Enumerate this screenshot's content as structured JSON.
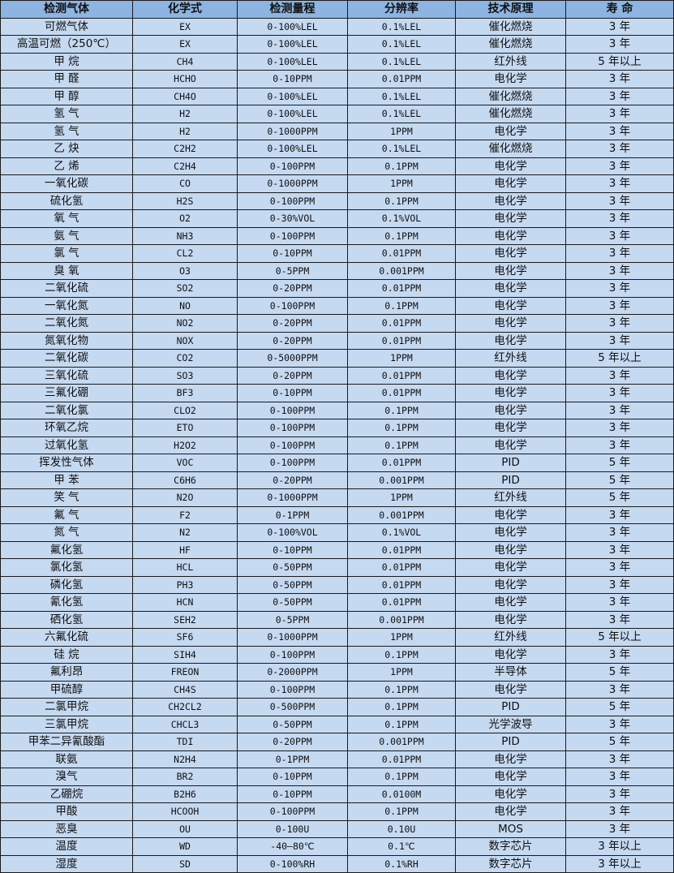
{
  "colors": {
    "header_bg": "#8db4e2",
    "row_bg": "#c5d9f1",
    "border": "#1a1a1a"
  },
  "table": {
    "headers": [
      "检测气体",
      "化学式",
      "检测量程",
      "分辨率",
      "技术原理",
      "寿 命"
    ],
    "rows": [
      [
        "可燃气体",
        "EX",
        "0-100%LEL",
        "0.1%LEL",
        "催化燃烧",
        "3 年"
      ],
      [
        "高温可燃（250℃）",
        "EX",
        "0-100%LEL",
        "0.1%LEL",
        "催化燃烧",
        "3 年"
      ],
      [
        "甲 烷",
        "CH4",
        "0-100%LEL",
        "0.1%LEL",
        "红外线",
        "5 年以上"
      ],
      [
        "甲 醛",
        "HCHO",
        "0-10PPM",
        "0.01PPM",
        "电化学",
        "3 年"
      ],
      [
        "甲 醇",
        "CH4O",
        "0-100%LEL",
        "0.1%LEL",
        "催化燃烧",
        "3 年"
      ],
      [
        "氢 气",
        "H2",
        "0-100%LEL",
        "0.1%LEL",
        "催化燃烧",
        "3 年"
      ],
      [
        "氢 气",
        "H2",
        "0-1000PPM",
        "1PPM",
        "电化学",
        "3 年"
      ],
      [
        "乙 炔",
        "C2H2",
        "0-100%LEL",
        "0.1%LEL",
        "催化燃烧",
        "3 年"
      ],
      [
        "乙 烯",
        "C2H4",
        "0-100PPM",
        "0.1PPM",
        "电化学",
        "3 年"
      ],
      [
        "一氧化碳",
        "CO",
        "0-1000PPM",
        "1PPM",
        "电化学",
        "3 年"
      ],
      [
        "硫化氢",
        "H2S",
        "0-100PPM",
        "0.1PPM",
        "电化学",
        "3 年"
      ],
      [
        "氧 气",
        "O2",
        "0-30%VOL",
        "0.1%VOL",
        "电化学",
        "3 年"
      ],
      [
        "氨 气",
        "NH3",
        "0-100PPM",
        "0.1PPM",
        "电化学",
        "3 年"
      ],
      [
        "氯 气",
        "CL2",
        "0-10PPM",
        "0.01PPM",
        "电化学",
        "3 年"
      ],
      [
        "臭 氧",
        "O3",
        "0-5PPM",
        "0.001PPM",
        "电化学",
        "3 年"
      ],
      [
        "二氧化硫",
        "SO2",
        "0-20PPM",
        "0.01PPM",
        "电化学",
        "3 年"
      ],
      [
        "一氧化氮",
        "NO",
        "0-100PPM",
        "0.1PPM",
        "电化学",
        "3 年"
      ],
      [
        "二氧化氮",
        "NO2",
        "0-20PPM",
        "0.01PPM",
        "电化学",
        "3 年"
      ],
      [
        "氮氧化物",
        "NOX",
        "0-20PPM",
        "0.01PPM",
        "电化学",
        "3 年"
      ],
      [
        "二氧化碳",
        "CO2",
        "0-5000PPM",
        "1PPM",
        "红外线",
        "5 年以上"
      ],
      [
        "三氧化硫",
        "SO3",
        "0-20PPM",
        "0.01PPM",
        "电化学",
        "3 年"
      ],
      [
        "三氟化硼",
        "BF3",
        "0-10PPM",
        "0.01PPM",
        "电化学",
        "3 年"
      ],
      [
        "二氧化氯",
        "CLO2",
        "0-100PPM",
        "0.1PPM",
        "电化学",
        "3 年"
      ],
      [
        "环氧乙烷",
        "ETO",
        "0-100PPM",
        "0.1PPM",
        "电化学",
        "3 年"
      ],
      [
        "过氧化氢",
        "H2O2",
        "0-100PPM",
        "0.1PPM",
        "电化学",
        "3 年"
      ],
      [
        "挥发性气体",
        "VOC",
        "0-100PPM",
        "0.01PPM",
        "PID",
        "5 年"
      ],
      [
        "甲 苯",
        "C6H6",
        "0-20PPM",
        "0.001PPM",
        "PID",
        "5 年"
      ],
      [
        "笑 气",
        "N2O",
        "0-1000PPM",
        "1PPM",
        "红外线",
        "5 年"
      ],
      [
        "氟 气",
        "F2",
        "0-1PPM",
        "0.001PPM",
        "电化学",
        "3 年"
      ],
      [
        "氮 气",
        "N2",
        "0-100%VOL",
        "0.1%VOL",
        "电化学",
        "3 年"
      ],
      [
        "氟化氢",
        "HF",
        "0-10PPM",
        "0.01PPM",
        "电化学",
        "3 年"
      ],
      [
        "氯化氢",
        "HCL",
        "0-50PPM",
        "0.01PPM",
        "电化学",
        "3 年"
      ],
      [
        "磷化氢",
        "PH3",
        "0-50PPM",
        "0.01PPM",
        "电化学",
        "3 年"
      ],
      [
        "氰化氢",
        "HCN",
        "0-50PPM",
        "0.01PPM",
        "电化学",
        "3 年"
      ],
      [
        "硒化氢",
        "SEH2",
        "0-5PPM",
        "0.001PPM",
        "电化学",
        "3 年"
      ],
      [
        "六氟化硫",
        "SF6",
        "0-1000PPM",
        "1PPM",
        "红外线",
        "5 年以上"
      ],
      [
        "硅 烷",
        "SIH4",
        "0-100PPM",
        "0.1PPM",
        "电化学",
        "3 年"
      ],
      [
        "氟利昂",
        "FREON",
        "0-2000PPM",
        "1PPM",
        "半导体",
        "5 年"
      ],
      [
        "甲硫醇",
        "CH4S",
        "0-100PPM",
        "0.1PPM",
        "电化学",
        "3 年"
      ],
      [
        "二氯甲烷",
        "CH2CL2",
        "0-500PPM",
        "0.1PPM",
        "PID",
        "5 年"
      ],
      [
        "三氯甲烷",
        "CHCL3",
        "0-50PPM",
        "0.1PPM",
        "光学波导",
        "3 年"
      ],
      [
        "甲苯二异氰酸酯",
        "TDI",
        "0-20PPM",
        "0.001PPM",
        "PID",
        "5 年"
      ],
      [
        "联氨",
        "N2H4",
        "0-1PPM",
        "0.01PPM",
        "电化学",
        "3 年"
      ],
      [
        "溴气",
        "BR2",
        "0-10PPM",
        "0.1PPM",
        "电化学",
        "3 年"
      ],
      [
        "乙硼烷",
        "B2H6",
        "0-10PPM",
        "0.0100M",
        "电化学",
        "3 年"
      ],
      [
        "甲酸",
        "HCOOH",
        "0-100PPM",
        "0.1PPM",
        "电化学",
        "3 年"
      ],
      [
        "恶臭",
        "OU",
        "0-100U",
        "0.10U",
        "MOS",
        "3 年"
      ],
      [
        "温度",
        "WD",
        "-40—80℃",
        "0.1℃",
        "数字芯片",
        "3 年以上"
      ],
      [
        "湿度",
        "SD",
        "0-100%RH",
        "0.1%RH",
        "数字芯片",
        "3 年以上"
      ]
    ]
  }
}
